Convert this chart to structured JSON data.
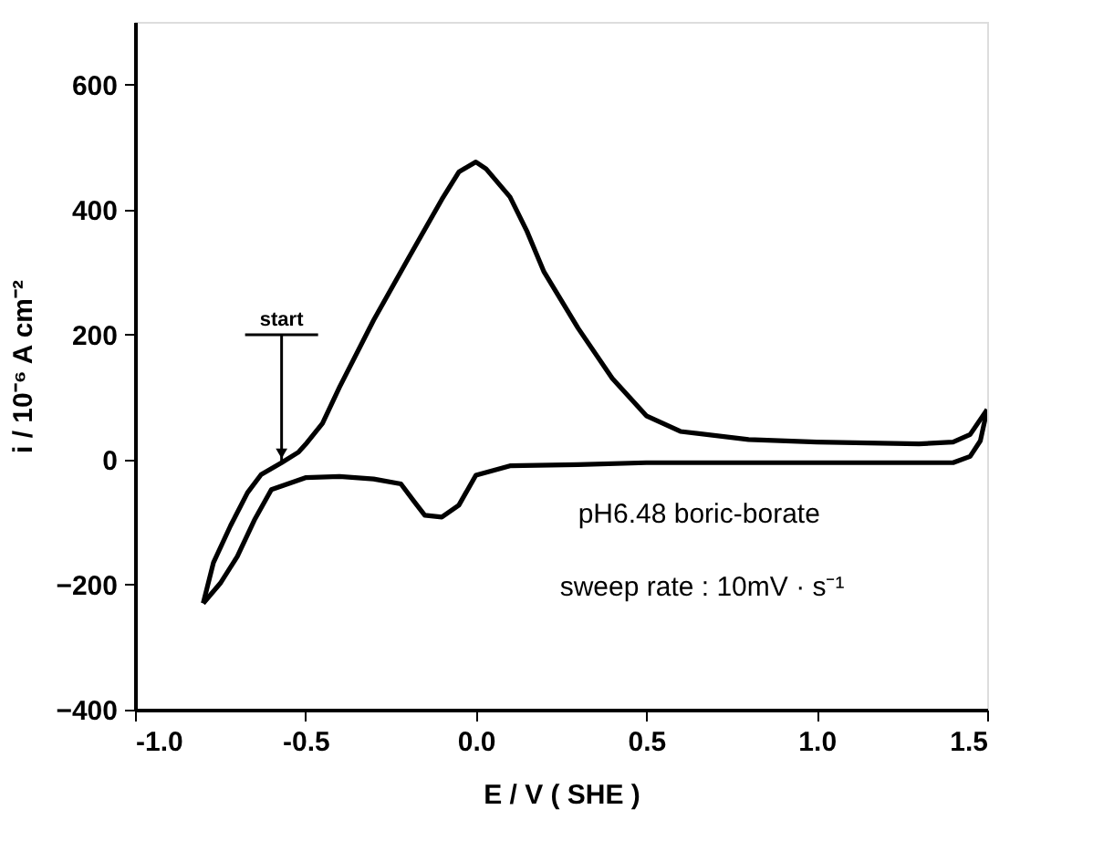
{
  "chart_data": {
    "type": "line",
    "xlabel": "E / V ( SHE )",
    "ylabel": "i / 10⁻⁶ A cm⁻²",
    "xlim": [
      -1.0,
      1.5
    ],
    "xticks": [
      {
        "value": -1.0,
        "label": "-1.0"
      },
      {
        "value": -0.5,
        "label": "-0.5"
      },
      {
        "value": 0.0,
        "label": "0.0"
      },
      {
        "value": 0.5,
        "label": "0.5"
      },
      {
        "value": 1.0,
        "label": "1.0"
      },
      {
        "value": 1.5,
        "label": "1.5"
      }
    ],
    "ylim": [
      -400,
      700
    ],
    "yticks": [
      -400,
      -200,
      0,
      200,
      400,
      600
    ],
    "grid": false,
    "marker": "none",
    "line_style": "solid",
    "series": [
      {
        "color": "#000000",
        "x": [
          -0.8,
          -0.77,
          -0.72,
          -0.67,
          -0.63,
          -0.57,
          -0.52,
          -0.5,
          -0.45,
          -0.4,
          -0.3,
          -0.2,
          -0.1,
          -0.05,
          0.0,
          0.03,
          0.1,
          0.15,
          0.2,
          0.3,
          0.4,
          0.5,
          0.6,
          0.8,
          1.0,
          1.3,
          1.4,
          1.45,
          1.5
        ],
        "values": [
          -230,
          -165,
          -106,
          -53,
          -24,
          -5,
          12,
          24,
          58,
          116,
          223,
          320,
          416,
          460,
          476,
          465,
          420,
          365,
          300,
          210,
          130,
          70,
          45,
          32,
          28,
          25,
          28,
          40,
          80
        ]
      },
      {
        "color": "#000000",
        "x": [
          1.5,
          1.48,
          1.45,
          1.4,
          1.0,
          0.5,
          0.3,
          0.1,
          0.0,
          -0.05,
          -0.1,
          -0.15,
          -0.18,
          -0.22,
          -0.3,
          -0.4,
          -0.5,
          -0.6,
          -0.65,
          -0.7,
          -0.75,
          -0.8
        ],
        "values": [
          80,
          30,
          5,
          -5,
          -5,
          -5,
          -8,
          -10,
          -25,
          -73,
          -92,
          -89,
          -68,
          -39,
          -31,
          -27,
          -29,
          -48,
          -97,
          -155,
          -198,
          -230
        ]
      }
    ],
    "annotations": [
      {
        "text": "start",
        "x": -0.57,
        "y": -5
      },
      "pH6.48 boric-borate",
      "sweep rate : 10mV · s⁻¹"
    ]
  }
}
